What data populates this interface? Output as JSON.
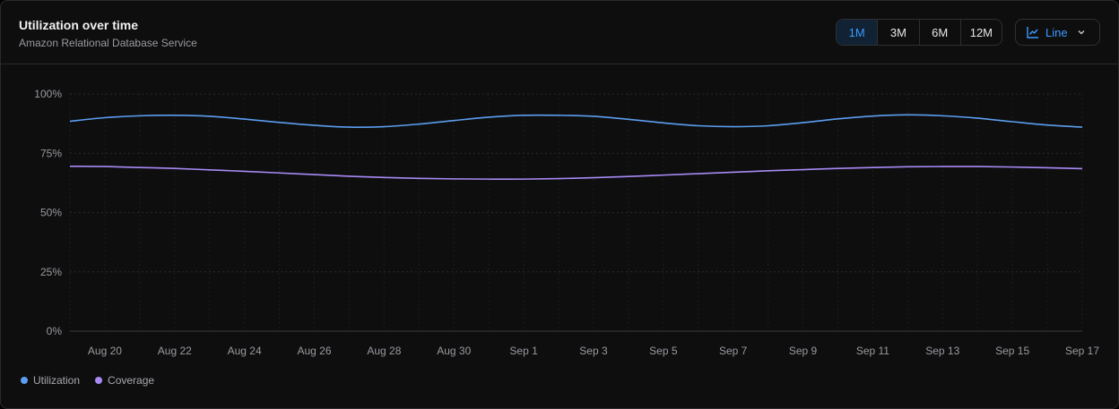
{
  "header": {
    "title": "Utilization over time",
    "subtitle": "Amazon Relational Database Service"
  },
  "controls": {
    "ranges": [
      "1M",
      "3M",
      "6M",
      "12M"
    ],
    "active_range": "1M",
    "chart_type_label": "Line",
    "chart_type_icon": "line-chart-icon",
    "dropdown_icon": "chevron-down-icon"
  },
  "colors": {
    "utilization": "#5b9ef0",
    "coverage": "#a98af5",
    "accent": "#3c9bff"
  },
  "chart_data": {
    "type": "line",
    "x": [
      "Aug 19",
      "Aug 20",
      "Aug 21",
      "Aug 22",
      "Aug 23",
      "Aug 24",
      "Aug 25",
      "Aug 26",
      "Aug 27",
      "Aug 28",
      "Aug 29",
      "Aug 30",
      "Aug 31",
      "Sep 1",
      "Sep 2",
      "Sep 3",
      "Sep 4",
      "Sep 5",
      "Sep 6",
      "Sep 7",
      "Sep 8",
      "Sep 9",
      "Sep 10",
      "Sep 11",
      "Sep 12",
      "Sep 13",
      "Sep 14",
      "Sep 15",
      "Sep 16",
      "Sep 17"
    ],
    "tick_labels": [
      "Aug 20",
      "Aug 22",
      "Aug 24",
      "Aug 26",
      "Aug 28",
      "Aug 30",
      "Sep 1",
      "Sep 3",
      "Sep 5",
      "Sep 7",
      "Sep 9",
      "Sep 11",
      "Sep 13",
      "Sep 15",
      "Sep 17"
    ],
    "series": [
      {
        "name": "Utilization",
        "values": [
          88.5,
          90.0,
          90.8,
          91.0,
          90.6,
          89.4,
          88.0,
          86.8,
          86.0,
          86.2,
          87.3,
          88.8,
          90.2,
          91.0,
          91.0,
          90.6,
          89.3,
          87.8,
          86.6,
          86.2,
          86.6,
          87.9,
          89.5,
          90.7,
          91.2,
          90.8,
          89.8,
          88.3,
          86.9,
          86.0
        ]
      },
      {
        "name": "Coverage",
        "values": [
          69.5,
          69.4,
          69.0,
          68.6,
          68.0,
          67.4,
          66.7,
          66.0,
          65.3,
          64.8,
          64.4,
          64.2,
          64.1,
          64.1,
          64.3,
          64.7,
          65.2,
          65.8,
          66.4,
          67.0,
          67.6,
          68.1,
          68.6,
          69.0,
          69.3,
          69.4,
          69.4,
          69.2,
          68.9,
          68.5
        ]
      }
    ],
    "y_ticks": [
      "0%",
      "25%",
      "50%",
      "75%",
      "100%"
    ],
    "ylim": [
      0,
      100
    ],
    "grid": true,
    "legend": "bottom-left"
  }
}
